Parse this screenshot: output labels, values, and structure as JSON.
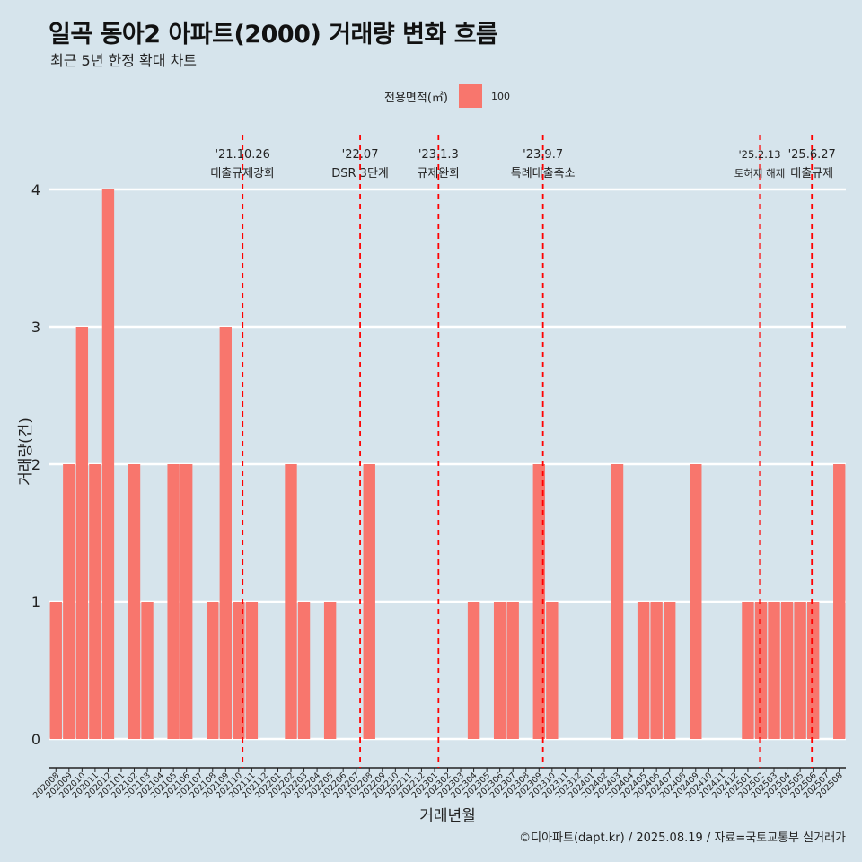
{
  "header": {
    "title": "일곡 동아2 아파트(2000) 거래량 변화 흐름",
    "subtitle": "최근 5년 한정 확대 차트"
  },
  "legend": {
    "title": "전용면적(㎡)",
    "items": [
      {
        "label": "100",
        "color": "#f8766d"
      }
    ]
  },
  "credit": "©디아파트(dapt.kr) / 2025.08.19 / 자료=국토교통부 실거래가",
  "colors": {
    "background": "#d6e4ec",
    "bar": "#f8766d",
    "event_line": "#ff0000",
    "grid": "#ffffff"
  },
  "chart_data": {
    "type": "bar",
    "xlabel": "거래년월",
    "ylabel": "거래량(건)",
    "ylim": [
      0,
      4
    ],
    "yticks": [
      0,
      1,
      2,
      3,
      4
    ],
    "grid": true,
    "legend_position": "top",
    "categories": [
      "202008",
      "202009",
      "202010",
      "202011",
      "202012",
      "202101",
      "202102",
      "202103",
      "202104",
      "202105",
      "202106",
      "202107",
      "202108",
      "202109",
      "202110",
      "202111",
      "202112",
      "202201",
      "202202",
      "202203",
      "202204",
      "202205",
      "202206",
      "202207",
      "202208",
      "202209",
      "202210",
      "202211",
      "202212",
      "202301",
      "202302",
      "202303",
      "202304",
      "202305",
      "202306",
      "202307",
      "202308",
      "202309",
      "202310",
      "202311",
      "202312",
      "202401",
      "202402",
      "202403",
      "202404",
      "202405",
      "202406",
      "202407",
      "202408",
      "202409",
      "202410",
      "202411",
      "202412",
      "202501",
      "202502",
      "202503",
      "202504",
      "202505",
      "202506",
      "202507",
      "202508"
    ],
    "series": [
      {
        "name": "100",
        "values": [
          1,
          2,
          3,
          2,
          4,
          0,
          2,
          1,
          0,
          2,
          2,
          0,
          1,
          3,
          1,
          1,
          0,
          0,
          2,
          1,
          0,
          1,
          0,
          0,
          2,
          0,
          0,
          0,
          0,
          0,
          0,
          0,
          1,
          0,
          1,
          1,
          0,
          2,
          1,
          0,
          0,
          0,
          0,
          2,
          0,
          1,
          1,
          1,
          0,
          2,
          0,
          0,
          0,
          1,
          1,
          1,
          1,
          1,
          1,
          0,
          2
        ]
      }
    ],
    "events": [
      {
        "date": "'21.10.26",
        "label": "대출규제강화",
        "index": 14.8
      },
      {
        "date": "'22.07",
        "label": "DSR 3단계",
        "index": 23.8
      },
      {
        "date": "'23.1.3",
        "label": "규제완화",
        "index": 29.8
      },
      {
        "date": "'23.9.7",
        "label": "특례대출축소",
        "index": 37.8
      },
      {
        "date": "'25.2.13",
        "label": "토허제 해제",
        "index": 54.4,
        "thin": true
      },
      {
        "date": "'25.6.27",
        "label": "대출규제",
        "index": 58.4
      }
    ]
  }
}
